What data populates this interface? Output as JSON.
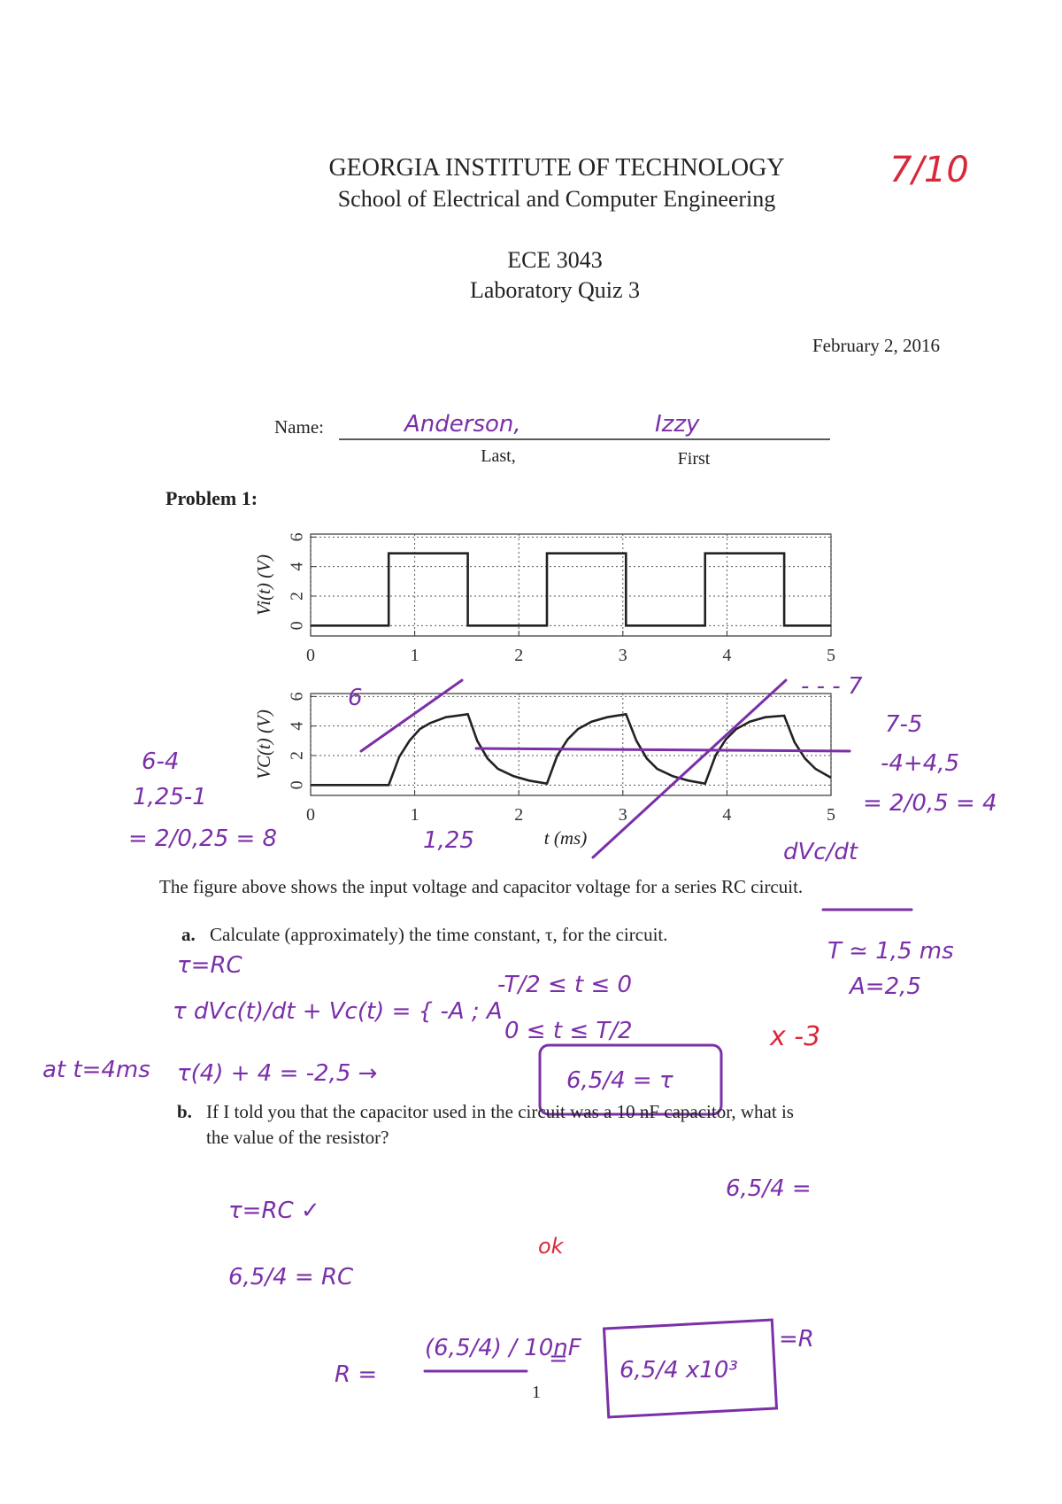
{
  "header": {
    "institution": "GEORGIA INSTITUTE OF TECHNOLOGY",
    "school": "School of Electrical and Computer Engineering",
    "course": "ECE 3043",
    "quiz": "Laboratory Quiz 3",
    "date": "February 2, 2016",
    "grade": "7/10"
  },
  "name": {
    "label": "Name:",
    "last": "Anderson,",
    "first": "Izzy",
    "last_caption": "Last,",
    "first_caption": "First"
  },
  "problem": {
    "title": "Problem 1:",
    "figure_caption": "The figure above shows the input voltage and capacitor voltage for a series RC circuit.",
    "questions": [
      {
        "label": "a.",
        "text": "Calculate (approximately) the time constant, τ, for the circuit."
      },
      {
        "label": "b.",
        "text": "If I told you that the capacitor used in the circuit was a 10 nF capacitor, what is",
        "text2": "the value of the resistor?"
      }
    ]
  },
  "figure": {
    "xlabel": "t (ms)",
    "plots": [
      {
        "ylabel": "Vi(t) (V)",
        "xlim": [
          0,
          5
        ],
        "ylim": [
          -0.7,
          6.2
        ],
        "xticks": [
          0,
          1,
          2,
          3,
          4,
          5
        ],
        "yticks": [
          0,
          2,
          4,
          6
        ],
        "grid": true,
        "color": "#222222",
        "x": [
          0,
          0.75,
          0.75,
          1.51,
          1.51,
          2.27,
          2.27,
          3.03,
          3.03,
          3.79,
          3.79,
          4.55,
          4.55,
          5
        ],
        "values": [
          0,
          0,
          4.9,
          4.9,
          0,
          0,
          4.9,
          4.9,
          0,
          0,
          4.9,
          4.9,
          0,
          0
        ]
      },
      {
        "ylabel": "VC(t) (V)",
        "xlim": [
          0,
          5
        ],
        "ylim": [
          -0.7,
          6.2
        ],
        "xticks": [
          0,
          1,
          2,
          3,
          4,
          5
        ],
        "yticks": [
          0,
          2,
          4,
          6
        ],
        "grid": true,
        "color": "#222222",
        "x": [
          0,
          0.75,
          0.85,
          0.95,
          1.05,
          1.15,
          1.3,
          1.51,
          1.6,
          1.7,
          1.8,
          1.95,
          2.1,
          2.27,
          2.37,
          2.47,
          2.57,
          2.7,
          2.85,
          3.03,
          3.13,
          3.23,
          3.33,
          3.48,
          3.63,
          3.79,
          3.89,
          3.99,
          4.09,
          4.22,
          4.37,
          4.55,
          4.65,
          4.75,
          4.85,
          5
        ],
        "values": [
          0,
          0,
          1.9,
          3.0,
          3.8,
          4.2,
          4.6,
          4.8,
          3.0,
          1.8,
          1.1,
          0.6,
          0.3,
          0.1,
          2.0,
          3.1,
          3.8,
          4.3,
          4.6,
          4.8,
          3.0,
          1.8,
          1.1,
          0.6,
          0.3,
          0.1,
          2.0,
          3.1,
          3.8,
          4.3,
          4.6,
          4.7,
          2.9,
          1.8,
          1.1,
          0.5
        ]
      }
    ]
  },
  "handwriting": [
    "6",
    "6-4",
    "1,25-1",
    "= 2/0,25 = 8",
    "1,25",
    "- - - 7",
    "7-5",
    "-4+4,5",
    "= 2/0,5 = 4",
    "dVc/dt",
    "T ≃ 1,5 ms",
    "A=2,5",
    "τ=RC",
    "τ dVc(t)/dt + Vc(t) = { -A ; A",
    "-T/2 ≤ t ≤ 0",
    "0 ≤ t ≤ T/2",
    "at t=4ms",
    "τ(4) + 4 = -2,5  →",
    "6,5/4 = τ",
    "τ=RC ✓",
    "6,5/4 = RC",
    "R =",
    "(6,5/4) / 10nF",
    "=",
    "6,5/4 x10³",
    "=R",
    "6,5/4 ="
  ],
  "grading": [
    "x -3",
    "ok"
  ],
  "page_number": "1"
}
